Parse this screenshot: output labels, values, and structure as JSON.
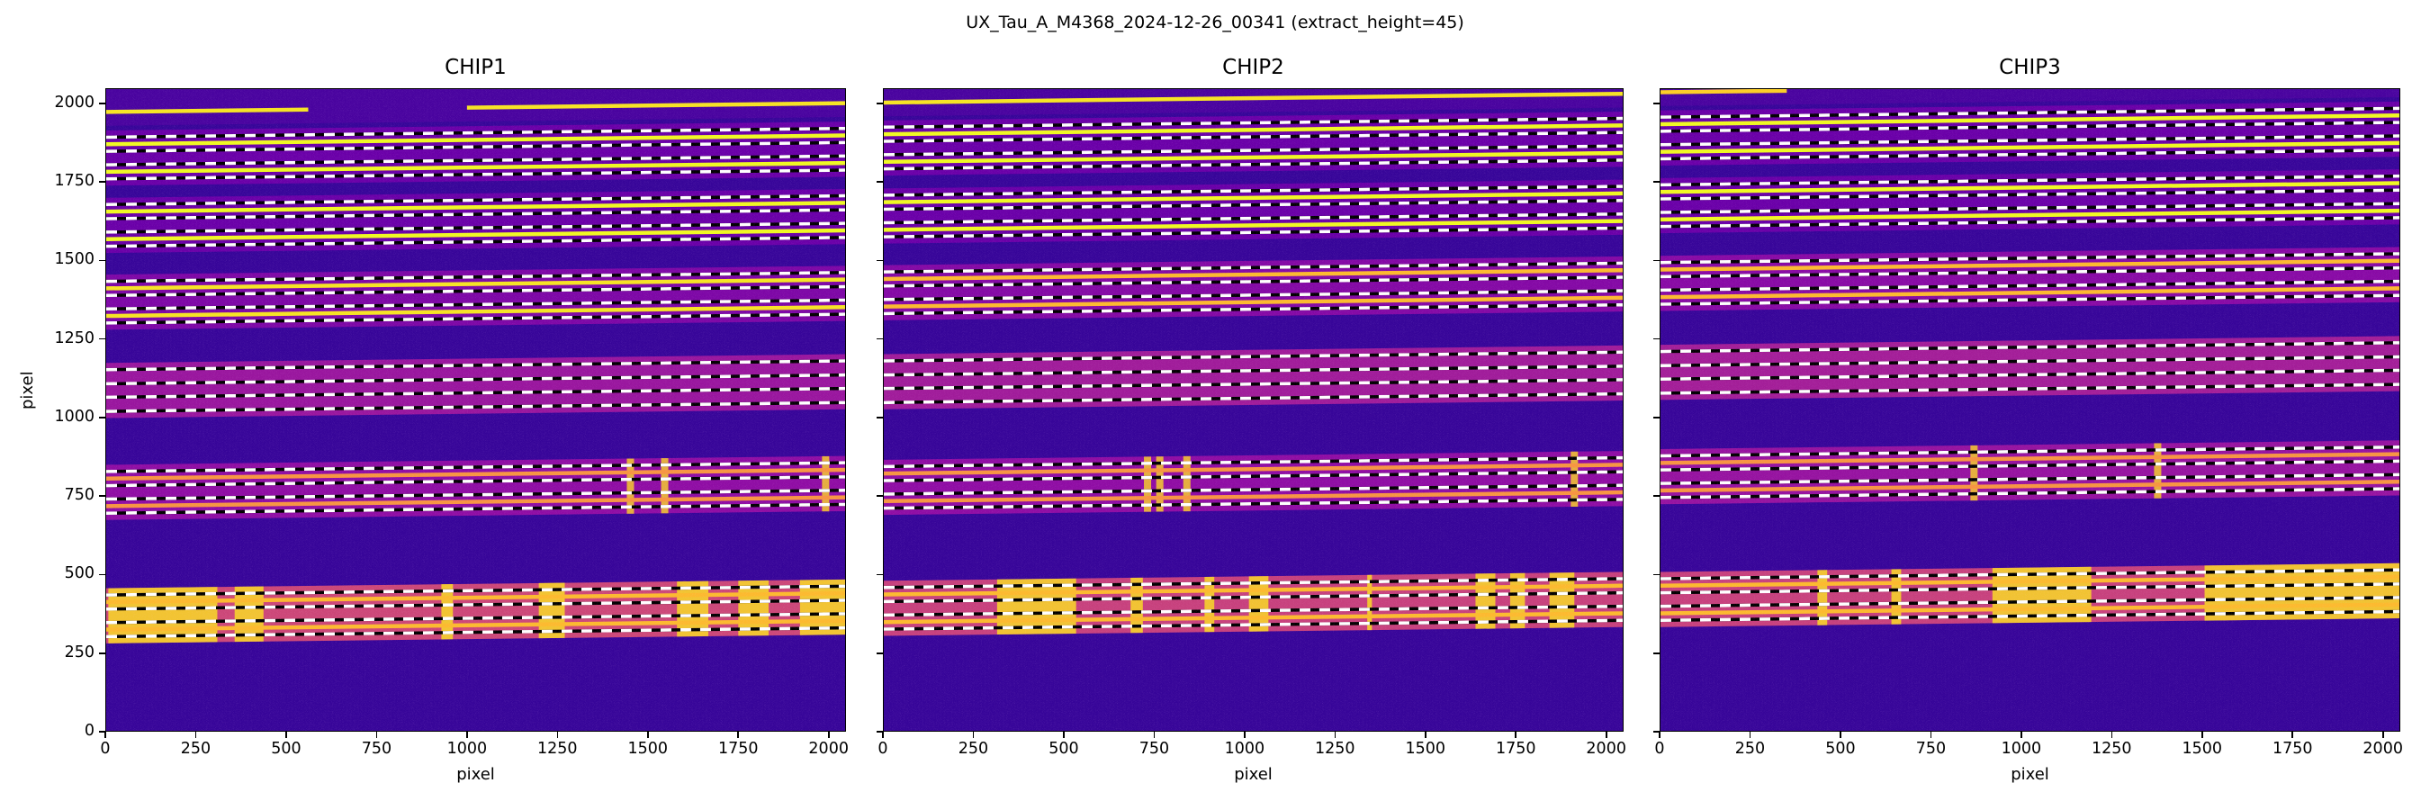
{
  "chart_data": {
    "type": "heatmap",
    "title": "UX_Tau_A_M4368_2024-12-26_00341  (extract_height=45)",
    "xlabel": "pixel",
    "ylabel": "pixel",
    "xlim": [
      0,
      2048
    ],
    "ylim": [
      0,
      2048
    ],
    "xticks": [
      0,
      250,
      500,
      750,
      1000,
      1250,
      1500,
      1750,
      2000
    ],
    "xticklabels": [
      "0",
      "250",
      "500",
      "750",
      "1000",
      "1250",
      "1500",
      "1750",
      "2000"
    ],
    "yticks": [
      0,
      250,
      500,
      750,
      1000,
      1250,
      1500,
      1750,
      2000
    ],
    "yticklabels": [
      "0",
      "250",
      "500",
      "750",
      "1000",
      "1250",
      "1500",
      "1750",
      "2000"
    ],
    "colormap": "plasma",
    "extract_height": 45,
    "trace_separation": 44,
    "order_half_height": 88,
    "slope_across_detector": 28,
    "panels": [
      {
        "title": "CHIP1",
        "orders": [
          {
            "center": 2019,
            "band_level": 0.12,
            "trace_level": 0.95,
            "extracted": false,
            "trace_segments": [
              [
                0,
                560
              ],
              [
                1000,
                2048
              ]
            ]
          },
          {
            "center": 1828,
            "band_level": 0.2,
            "trace_level": 1.0,
            "extracted": true
          },
          {
            "center": 1613,
            "band_level": 0.2,
            "trace_level": 1.0,
            "extracted": true
          },
          {
            "center": 1368,
            "band_level": 0.25,
            "trace_level": 0.95,
            "extracted": true
          },
          {
            "center": 1086,
            "band_level": 0.33,
            "trace_level": 0,
            "extracted": true
          },
          {
            "center": 761,
            "band_level": 0.3,
            "trace_level": 0.75,
            "extracted": true,
            "emission_lines": [
              1453,
              1548,
              1994
            ]
          },
          {
            "center": 367,
            "band_level": 0.5,
            "trace_level": 0.85,
            "extracted": true,
            "bright_segments": [
              [
                6,
                308
              ],
              [
                356,
                436
              ],
              [
                929,
                961
              ],
              [
                1199,
                1271
              ],
              [
                1582,
                1669
              ],
              [
                1752,
                1836
              ],
              [
                1923,
                2048
              ]
            ]
          }
        ]
      },
      {
        "title": "CHIP2",
        "orders": [
          {
            "center": 2049,
            "band_level": 0.12,
            "trace_level": 0.95,
            "extracted": false,
            "trace_segments": [
              [
                0,
                2048
              ]
            ]
          },
          {
            "center": 1860,
            "band_level": 0.2,
            "trace_level": 1.0,
            "extracted": true
          },
          {
            "center": 1643,
            "band_level": 0.2,
            "trace_level": 1.0,
            "extracted": true
          },
          {
            "center": 1398,
            "band_level": 0.27,
            "trace_level": 0.85,
            "extracted": true
          },
          {
            "center": 1114,
            "band_level": 0.35,
            "trace_level": 0,
            "extracted": true
          },
          {
            "center": 777,
            "band_level": 0.3,
            "trace_level": 0.75,
            "extracted": true,
            "emission_lines": [
              731,
              765,
              840,
              1914
            ]
          },
          {
            "center": 391,
            "band_level": 0.48,
            "trace_level": 0.85,
            "extracted": true,
            "bright_segments": [
              [
                314,
                533
              ],
              [
                684,
                718
              ],
              [
                889,
                916
              ],
              [
                1012,
                1066
              ],
              [
                1340,
                1353
              ],
              [
                1640,
                1695
              ],
              [
                1736,
                1777
              ],
              [
                1845,
                1914
              ]
            ]
          }
        ]
      },
      {
        "title": "CHIP3",
        "orders": [
          {
            "center": 2082,
            "band_level": 0.12,
            "trace_level": 0.9,
            "extracted": false,
            "trace_segments": [
              [
                0,
                350
              ]
            ]
          },
          {
            "center": 1892,
            "band_level": 0.2,
            "trace_level": 1.0,
            "extracted": true
          },
          {
            "center": 1676,
            "band_level": 0.2,
            "trace_level": 1.0,
            "extracted": true
          },
          {
            "center": 1428,
            "band_level": 0.28,
            "trace_level": 0.85,
            "extracted": true
          },
          {
            "center": 1144,
            "band_level": 0.36,
            "trace_level": 0,
            "extracted": true
          },
          {
            "center": 811,
            "band_level": 0.32,
            "trace_level": 0.75,
            "extracted": true,
            "emission_lines": [
              869,
              1378
            ]
          },
          {
            "center": 419,
            "band_level": 0.48,
            "trace_level": 0.85,
            "extracted": true,
            "bright_segments": [
              [
                435,
                462
              ],
              [
                640,
                667
              ],
              [
                920,
                1194
              ],
              [
                1508,
                2048
              ]
            ]
          }
        ]
      }
    ]
  }
}
